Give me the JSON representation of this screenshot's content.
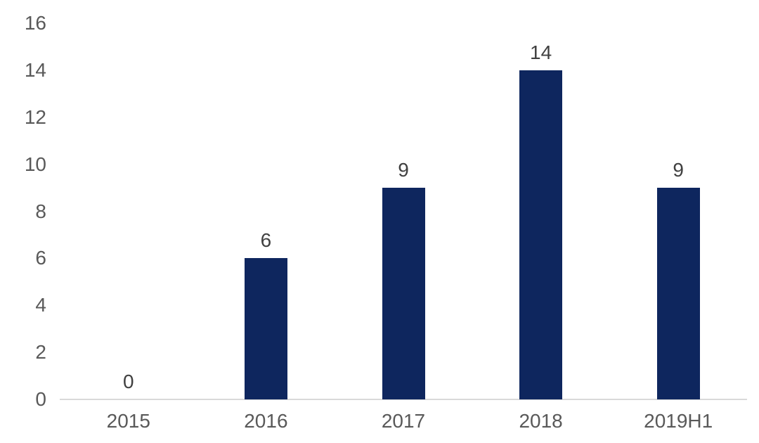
{
  "chart_data": {
    "type": "bar",
    "categories": [
      "2015",
      "2016",
      "2017",
      "2018",
      "2019H1"
    ],
    "values": [
      0,
      6,
      9,
      14,
      9
    ],
    "data_labels": [
      "0",
      "6",
      "9",
      "14",
      "9"
    ],
    "title": "",
    "xlabel": "",
    "ylabel": "",
    "ylim": [
      0,
      16
    ],
    "yticks": [
      "0",
      "2",
      "4",
      "6",
      "8",
      "10",
      "12",
      "14",
      "16"
    ],
    "grid": false,
    "legend": "none",
    "colors": {
      "bar": "#0E265E",
      "axis_line": "#D9D9D9",
      "axis_text": "#595959",
      "data_label_text": "#404040",
      "background": "#FFFFFF"
    }
  }
}
